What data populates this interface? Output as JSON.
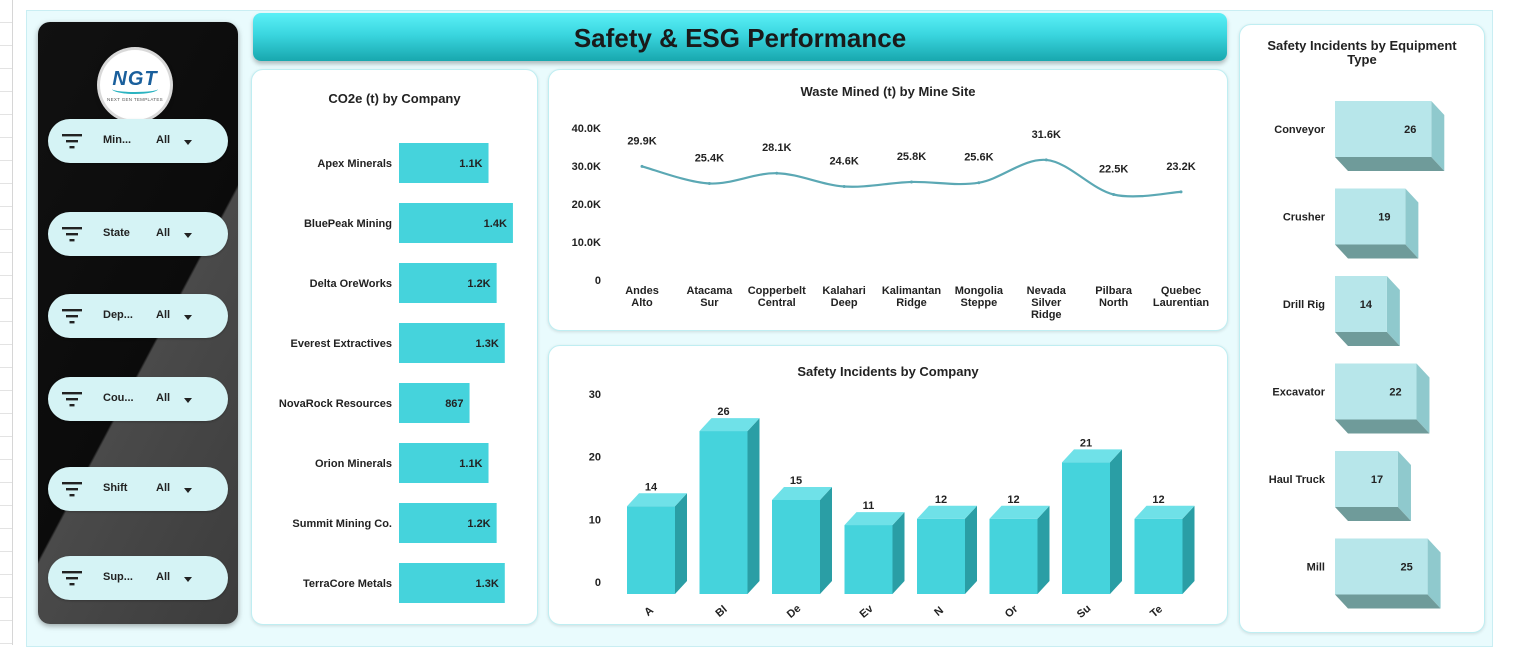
{
  "title": "Safety & ESG Performance",
  "logo": {
    "text": "NGT",
    "subtitle": "NEXT GEN TEMPLATES"
  },
  "filters": [
    {
      "label": "Min...",
      "value": "All"
    },
    {
      "label": "State",
      "value": "All"
    },
    {
      "label": "Dep...",
      "value": "All"
    },
    {
      "label": "Cou...",
      "value": "All"
    },
    {
      "label": "Shift",
      "value": "All"
    },
    {
      "label": "Sup...",
      "value": "All"
    }
  ],
  "colors": {
    "bar": "#45d3dc",
    "bar_side": "#2a9ea5",
    "line": "#5ba8b4",
    "equip_front": "#b7e6ea",
    "equip_side": "#8fc9cd",
    "equip_base": "#6f9b9a"
  },
  "chart_data": [
    {
      "id": "co2",
      "type": "bar",
      "orientation": "horizontal",
      "title": "CO2e (t) by Company",
      "categories": [
        "Apex Minerals",
        "BluePeak Mining",
        "Delta OreWorks",
        "Everest Extractives",
        "NovaRock Resources",
        "Orion Minerals",
        "Summit Mining Co.",
        "TerraCore Metals"
      ],
      "values": [
        1100,
        1400,
        1200,
        1300,
        867,
        1100,
        1200,
        1300
      ],
      "labels": [
        "1.1K",
        "1.4K",
        "1.2K",
        "1.3K",
        "867",
        "1.1K",
        "1.2K",
        "1.3K"
      ],
      "xlim": [
        0,
        1450
      ]
    },
    {
      "id": "waste",
      "type": "line",
      "title": "Waste Mined (t) by Mine Site",
      "categories": [
        "Andes Alto",
        "Atacama Sur",
        "Copperbelt Central",
        "Kalahari Deep",
        "Kalimantan Ridge",
        "Mongolia Steppe",
        "Nevada Silver Ridge",
        "Pilbara North",
        "Quebec Laurentian"
      ],
      "values": [
        29900,
        25400,
        28100,
        24600,
        25800,
        25600,
        31600,
        22500,
        23200
      ],
      "labels": [
        "29.9K",
        "25.4K",
        "28.1K",
        "24.6K",
        "25.8K",
        "25.6K",
        "31.6K",
        "22.5K",
        "23.2K"
      ],
      "yticks": [
        "0",
        "10.0K",
        "20.0K",
        "30.0K",
        "40.0K"
      ],
      "ylim": [
        0,
        40000
      ]
    },
    {
      "id": "incidents",
      "type": "bar",
      "title": "Safety Incidents  by Company",
      "categories": [
        "A",
        "Bl",
        "De",
        "Ev",
        "N",
        "Or",
        "Su",
        "Te"
      ],
      "values": [
        14,
        26,
        15,
        11,
        12,
        12,
        21,
        12
      ],
      "yticks": [
        "0",
        "10",
        "20",
        "30"
      ],
      "ylim": [
        0,
        30
      ]
    },
    {
      "id": "equipment",
      "type": "bar",
      "orientation": "horizontal",
      "title": "Safety Incidents by Equipment Type",
      "categories": [
        "Conveyor",
        "Crusher",
        "Drill Rig",
        "Excavator",
        "Haul Truck",
        "Mill"
      ],
      "values": [
        26,
        19,
        14,
        22,
        17,
        25
      ],
      "xlim": [
        0,
        27
      ]
    }
  ]
}
